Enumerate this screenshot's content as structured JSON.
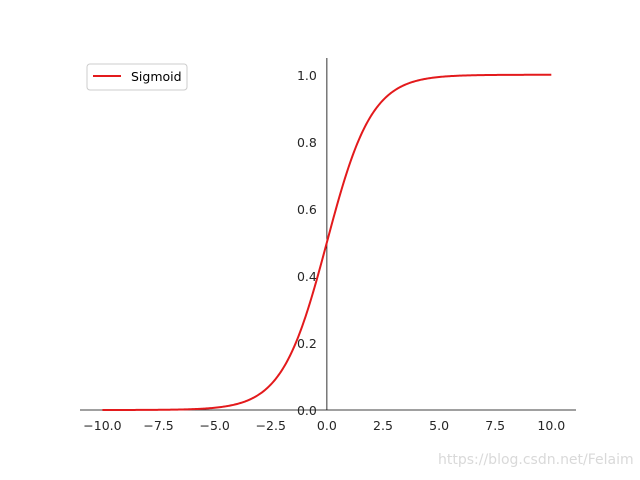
{
  "chart_data": {
    "type": "line",
    "function": "sigmoid",
    "series": [
      {
        "name": "Sigmoid",
        "color": "#e31a1c",
        "x": [
          -10,
          -9,
          -8,
          -7,
          -6,
          -5,
          -4,
          -3,
          -2.5,
          -2,
          -1.5,
          -1,
          -0.5,
          0,
          0.5,
          1,
          1.5,
          2,
          2.5,
          3,
          4,
          5,
          6,
          7,
          8,
          9,
          10
        ],
        "y": [
          4.54e-05,
          0.0001234,
          0.0003354,
          0.000911,
          0.002473,
          0.006693,
          0.017986,
          0.047426,
          0.075858,
          0.119203,
          0.182426,
          0.268941,
          0.377541,
          0.5,
          0.622459,
          0.731059,
          0.817574,
          0.880797,
          0.924142,
          0.952574,
          0.982014,
          0.993307,
          0.997527,
          0.999089,
          0.999665,
          0.999877,
          0.999955
        ]
      }
    ],
    "xlim": [
      -11,
      11.1
    ],
    "ylim": [
      0,
      1.05
    ],
    "xticks": [
      "−10.0",
      "−7.5",
      "−5.0",
      "−2.5",
      "0.0",
      "2.5",
      "5.0",
      "7.5",
      "10.0"
    ],
    "xtick_values": [
      -10,
      -7.5,
      -5,
      -2.5,
      0,
      2.5,
      5,
      7.5,
      10
    ],
    "yticks": [
      "0.0",
      "0.2",
      "0.4",
      "0.6",
      "0.8",
      "1.0"
    ],
    "ytick_values": [
      0,
      0.2,
      0.4,
      0.6,
      0.8,
      1.0
    ],
    "spines": "centered",
    "grid": false,
    "legend": {
      "position": "top-left",
      "entries": [
        "Sigmoid"
      ]
    },
    "title": "",
    "xlabel": "",
    "ylabel": ""
  },
  "watermark": "https://blog.csdn.net/Felaim"
}
